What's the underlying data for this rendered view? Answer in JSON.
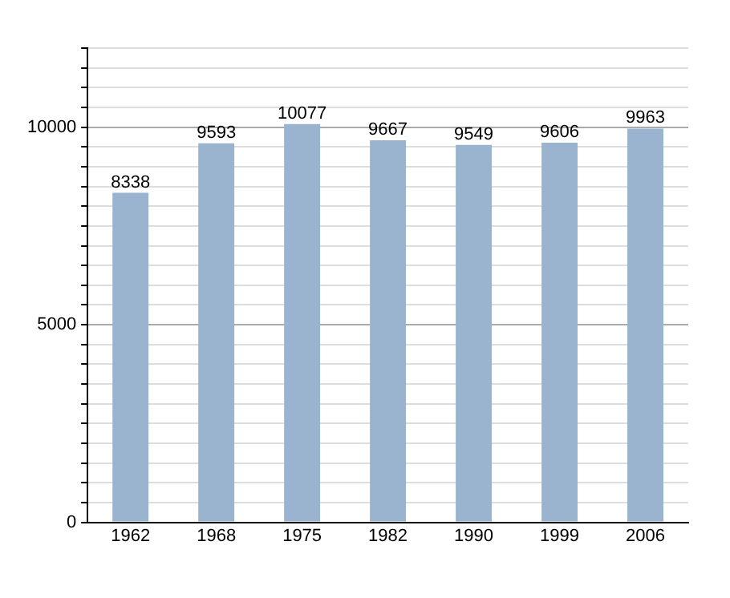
{
  "chart_data": {
    "type": "bar",
    "categories": [
      "1962",
      "1968",
      "1975",
      "1982",
      "1990",
      "1999",
      "2006"
    ],
    "values": [
      8338,
      9593,
      10077,
      9667,
      9549,
      9606,
      9963
    ],
    "color": "#9ab4cf",
    "data_labels": true,
    "grid": "y",
    "ylim": [
      0,
      12000
    ],
    "yticks": [
      0,
      {
        "value": 500,
        "label": null
      },
      {
        "value": 1000,
        "label": null
      },
      {
        "value": 1500,
        "label": null
      },
      {
        "value": 2000,
        "label": null
      },
      {
        "value": 2500,
        "label": null
      },
      {
        "value": 3000,
        "label": null
      },
      {
        "value": 3500,
        "label": null
      },
      {
        "value": 4000,
        "label": null
      },
      {
        "value": 4500,
        "label": null
      },
      5000,
      {
        "value": 5500,
        "label": null
      },
      {
        "value": 6000,
        "label": null
      },
      {
        "value": 6500,
        "label": null
      },
      {
        "value": 7000,
        "label": null
      },
      {
        "value": 7500,
        "label": null
      },
      {
        "value": 8000,
        "label": null
      },
      {
        "value": 8500,
        "label": null
      },
      {
        "value": 9000,
        "label": null
      },
      {
        "value": 9500,
        "label": null
      },
      10000,
      {
        "value": 10500,
        "label": null
      },
      {
        "value": 11000,
        "label": null
      },
      {
        "value": 11500,
        "label": null
      },
      {
        "value": 12000,
        "label": null
      }
    ]
  }
}
